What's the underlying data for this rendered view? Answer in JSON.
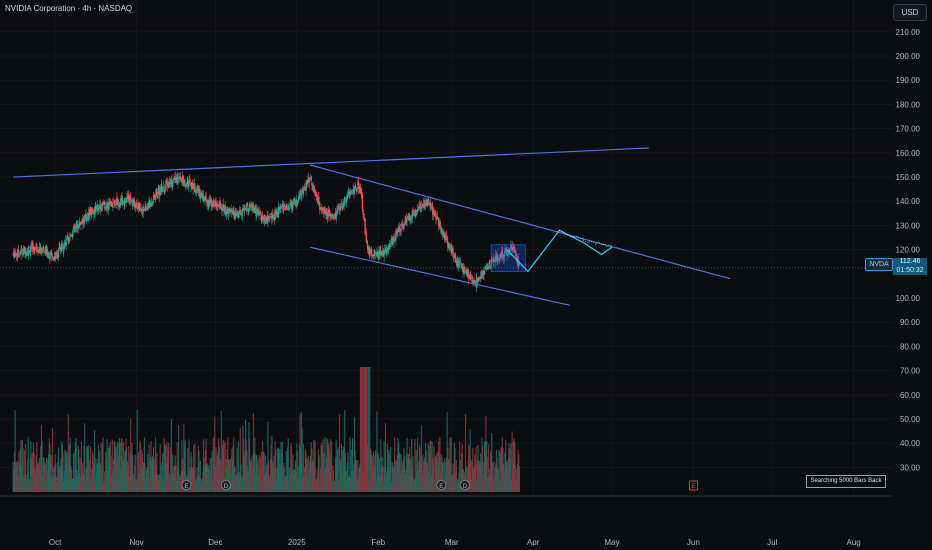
{
  "header": {
    "title": "NVIDIA Corporation · 4h · NASDAQ",
    "currency_button": "USD"
  },
  "price_tag": {
    "symbol": "NVDA",
    "price": "112.46",
    "countdown": "01:50:32"
  },
  "status": {
    "loading_text": "Searching 5000 Bars Back"
  },
  "event_markers": [
    {
      "label": "E"
    },
    {
      "label": "D"
    },
    {
      "label": "E"
    },
    {
      "label": "D"
    },
    {
      "label": "E"
    }
  ],
  "colors": {
    "background": "#0c0d10",
    "up_candle": "#26a69a",
    "down_candle": "#ef5350",
    "trendline": "#4f74e3",
    "projection": "#2ec4e6",
    "price_line": "#2a9fd6"
  },
  "chart_data": {
    "type": "candlestick",
    "symbol": "NVDA",
    "interval": "4h",
    "exchange": "NASDAQ",
    "y_ticks": [
      210,
      200,
      190,
      180,
      170,
      160,
      150,
      140,
      130,
      120,
      100,
      90,
      80,
      70,
      60,
      50,
      40,
      30
    ],
    "y_tick_labels": [
      "210.00",
      "200.00",
      "190.00",
      "180.00",
      "170.00",
      "160.00",
      "150.00",
      "140.00",
      "130.00",
      "120.00",
      "100.00",
      "90.00",
      "80.00",
      "70.00",
      "60.00",
      "50.00",
      "40.00",
      "30.00"
    ],
    "x_ticks": [
      {
        "label": "Oct",
        "date": "2024-10-01"
      },
      {
        "label": "Nov",
        "date": "2024-11-01"
      },
      {
        "label": "Dec",
        "date": "2024-12-01"
      },
      {
        "label": "2025",
        "date": "2025-01-01"
      },
      {
        "label": "Feb",
        "date": "2025-02-01"
      },
      {
        "label": "Mar",
        "date": "2025-03-01"
      },
      {
        "label": "Apr",
        "date": "2025-04-01"
      },
      {
        "label": "May",
        "date": "2025-05-01"
      },
      {
        "label": "Jun",
        "date": "2025-06-01"
      },
      {
        "label": "Jul",
        "date": "2025-07-01"
      },
      {
        "label": "Aug",
        "date": "2025-08-01"
      }
    ],
    "price_path": [
      {
        "date": "2024-09-15",
        "close": 118
      },
      {
        "date": "2024-09-24",
        "close": 121
      },
      {
        "date": "2024-10-01",
        "close": 117
      },
      {
        "date": "2024-10-08",
        "close": 128
      },
      {
        "date": "2024-10-15",
        "close": 136
      },
      {
        "date": "2024-10-22",
        "close": 139
      },
      {
        "date": "2024-10-29",
        "close": 141
      },
      {
        "date": "2024-11-04",
        "close": 136
      },
      {
        "date": "2024-11-10",
        "close": 145
      },
      {
        "date": "2024-11-16",
        "close": 149
      },
      {
        "date": "2024-11-22",
        "close": 147
      },
      {
        "date": "2024-11-28",
        "close": 140
      },
      {
        "date": "2024-12-03",
        "close": 138
      },
      {
        "date": "2024-12-09",
        "close": 134
      },
      {
        "date": "2024-12-14",
        "close": 138
      },
      {
        "date": "2024-12-20",
        "close": 132
      },
      {
        "date": "2024-12-26",
        "close": 137
      },
      {
        "date": "2025-01-01",
        "close": 139
      },
      {
        "date": "2025-01-06",
        "close": 150
      },
      {
        "date": "2025-01-10",
        "close": 137
      },
      {
        "date": "2025-01-15",
        "close": 133
      },
      {
        "date": "2025-01-20",
        "close": 142
      },
      {
        "date": "2025-01-25",
        "close": 147
      },
      {
        "date": "2025-01-28",
        "close": 119
      },
      {
        "date": "2025-02-03",
        "close": 118
      },
      {
        "date": "2025-02-10",
        "close": 130
      },
      {
        "date": "2025-02-16",
        "close": 137
      },
      {
        "date": "2025-02-20",
        "close": 140
      },
      {
        "date": "2025-02-26",
        "close": 126
      },
      {
        "date": "2025-03-03",
        "close": 115
      },
      {
        "date": "2025-03-10",
        "close": 106
      },
      {
        "date": "2025-03-14",
        "close": 112
      },
      {
        "date": "2025-03-19",
        "close": 117
      },
      {
        "date": "2025-03-24",
        "close": 121
      },
      {
        "date": "2025-03-27",
        "close": 112.46
      }
    ],
    "current_price": 112.46,
    "trendlines": [
      {
        "name": "upper",
        "points": [
          [
            "2024-09-15",
            150
          ],
          [
            "2025-05-15",
            162
          ]
        ]
      },
      {
        "name": "channel-top",
        "points": [
          [
            "2025-01-06",
            155
          ],
          [
            "2025-06-15",
            108
          ]
        ]
      },
      {
        "name": "channel-bottom",
        "points": [
          [
            "2025-01-06",
            121
          ],
          [
            "2025-04-15",
            97
          ]
        ]
      }
    ],
    "projection_path": [
      {
        "date": "2025-03-22",
        "value": 120
      },
      {
        "date": "2025-03-30",
        "value": 111
      },
      {
        "date": "2025-04-11",
        "value": 128
      },
      {
        "date": "2025-04-20",
        "value": 123
      },
      {
        "date": "2025-04-27",
        "value": 118
      },
      {
        "date": "2025-05-01",
        "value": 121
      }
    ],
    "volume_peak_date": "2025-01-27"
  }
}
